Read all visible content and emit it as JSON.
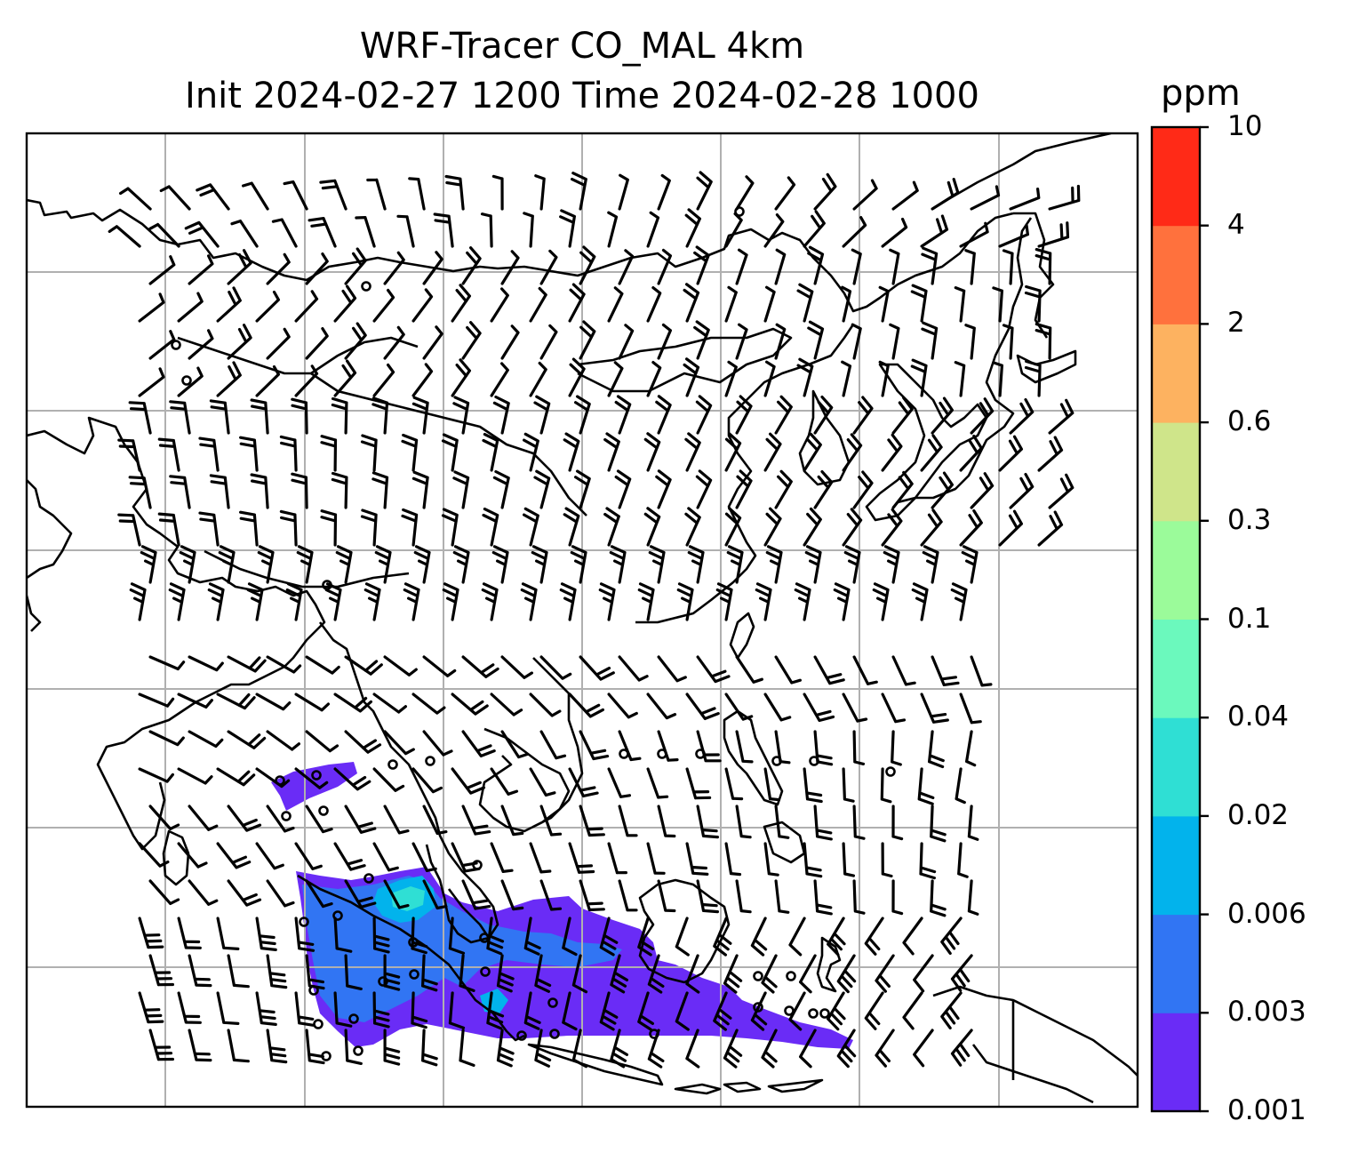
{
  "title": {
    "line1": "WRF-Tracer CO_MAL 4km",
    "line2": "Init 2024-02-27 1200 Time 2024-02-28 1000"
  },
  "colorbar": {
    "unit": "ppm",
    "levels": [
      "0.001",
      "0.003",
      "0.006",
      "0.02",
      "0.04",
      "0.1",
      "0.3",
      "0.6",
      "2",
      "4",
      "10"
    ],
    "colors": [
      "#6a2cf6",
      "#3175f3",
      "#02b3ec",
      "#2fdfd4",
      "#6bf9bd",
      "#9bfb9a",
      "#cfe58a",
      "#fdb260",
      "#ff713d",
      "#ff2a17"
    ]
  },
  "map": {
    "frame": "black",
    "grid_color": "#b0b0b0",
    "coast_color": "#000000",
    "wind_barbs": "black",
    "plume_colors": [
      "#6a2cf6",
      "#3175f3",
      "#02b3ec",
      "#2fdfd4"
    ]
  }
}
